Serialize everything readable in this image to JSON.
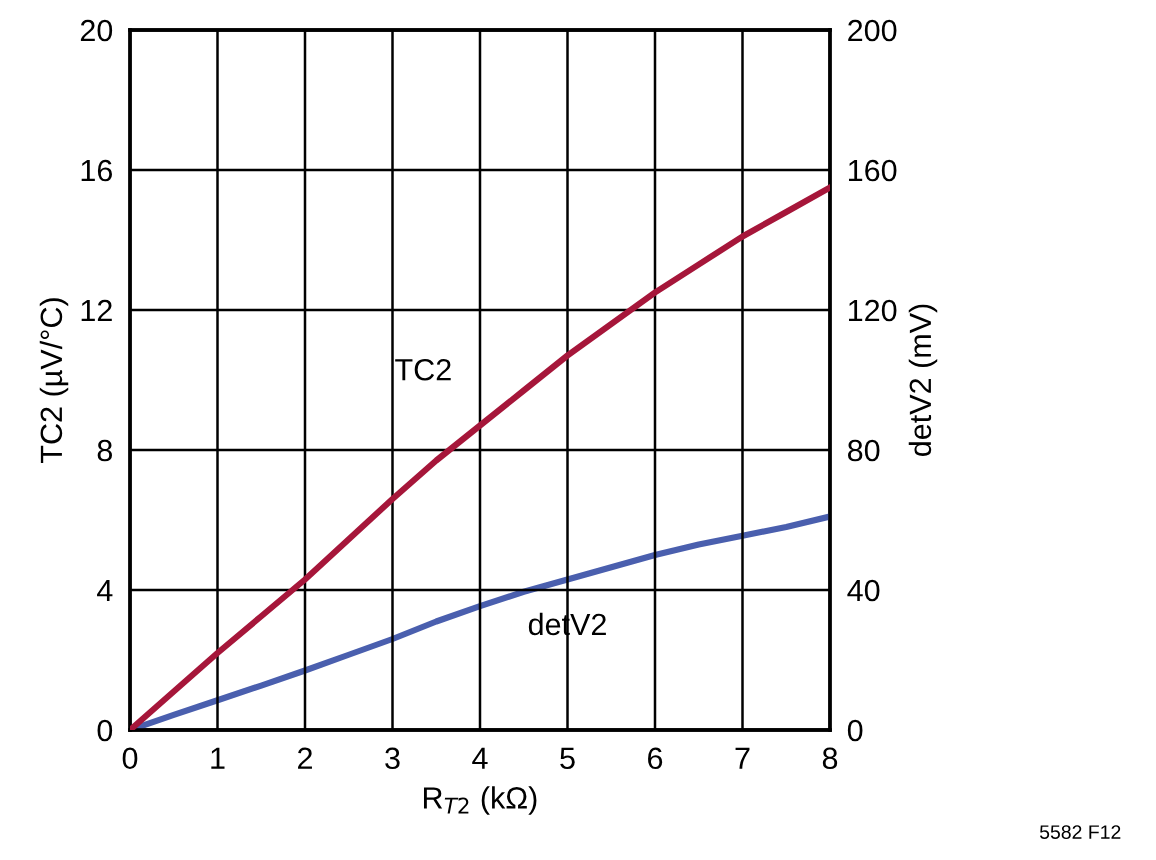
{
  "chart_data": {
    "type": "line",
    "xlabel": "R$_{T2}$ (kΩ)",
    "ylabel": "TC2 (µV/°C)",
    "y2label": "detV2 (mV)",
    "x": [
      0,
      0.5,
      1,
      1.5,
      2,
      2.5,
      3,
      3.5,
      4,
      4.5,
      5,
      5.5,
      6,
      6.5,
      7,
      7.5,
      8
    ],
    "series": [
      {
        "name": "TC2",
        "color": "#a6163a",
        "values": [
          0,
          1.1,
          2.2,
          3.25,
          4.3,
          5.45,
          6.6,
          7.7,
          8.7,
          9.7,
          10.7,
          11.6,
          12.5,
          13.3,
          14.1,
          14.8,
          15.5
        ]
      },
      {
        "name": "detV2",
        "color": "#4a5fae",
        "axis": "y2",
        "values": [
          0,
          4.3,
          8.5,
          12.7,
          17,
          21.5,
          26,
          31,
          35.4,
          39.5,
          43,
          46.5,
          50,
          53,
          55.5,
          58,
          61
        ]
      }
    ],
    "xlim": [
      0,
      8
    ],
    "xticks": [
      0,
      1,
      2,
      3,
      4,
      5,
      6,
      7,
      8
    ],
    "ylim": [
      0,
      20
    ],
    "yticks": [
      0,
      4,
      8,
      12,
      16,
      20
    ],
    "y2lim": [
      0,
      200
    ],
    "y2ticks": [
      0,
      40,
      80,
      120,
      160,
      200
    ],
    "grid": true,
    "line_style": "solid",
    "marker": "none",
    "annotations": [
      "5582 F12"
    ]
  }
}
